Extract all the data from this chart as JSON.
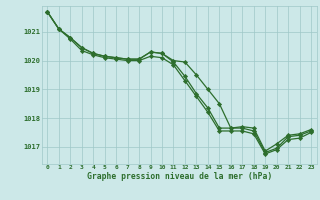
{
  "title": "Graphe pression niveau de la mer (hPa)",
  "bg_color": "#cce8e8",
  "grid_color": "#9fc8c8",
  "line_color": "#2d6e2d",
  "marker_color": "#2d6e2d",
  "xlim": [
    -0.5,
    23.5
  ],
  "ylim": [
    1016.4,
    1021.9
  ],
  "yticks": [
    1017,
    1018,
    1019,
    1020,
    1021
  ],
  "xticks": [
    0,
    1,
    2,
    3,
    4,
    5,
    6,
    7,
    8,
    9,
    10,
    11,
    12,
    13,
    14,
    15,
    16,
    17,
    18,
    19,
    20,
    21,
    22,
    23
  ],
  "series1": [
    1021.7,
    1021.1,
    1020.8,
    1020.45,
    1020.25,
    1020.15,
    1020.1,
    1020.05,
    1020.05,
    1020.3,
    1020.25,
    1020.0,
    1019.95,
    1019.5,
    1019.0,
    1018.5,
    1017.65,
    1017.7,
    1017.65,
    1016.85,
    1017.1,
    1017.4,
    1017.45,
    1017.6
  ],
  "series2": [
    1021.7,
    1021.1,
    1020.8,
    1020.45,
    1020.25,
    1020.15,
    1020.1,
    1020.05,
    1020.05,
    1020.3,
    1020.25,
    1019.95,
    1019.45,
    1018.85,
    1018.35,
    1017.65,
    1017.65,
    1017.65,
    1017.55,
    1016.8,
    1016.95,
    1017.35,
    1017.4,
    1017.55
  ],
  "series3": [
    1021.7,
    1021.1,
    1020.75,
    1020.35,
    1020.2,
    1020.1,
    1020.05,
    1020.0,
    1020.0,
    1020.15,
    1020.1,
    1019.85,
    1019.3,
    1018.75,
    1018.2,
    1017.55,
    1017.55,
    1017.55,
    1017.45,
    1016.75,
    1016.9,
    1017.25,
    1017.3,
    1017.5
  ]
}
